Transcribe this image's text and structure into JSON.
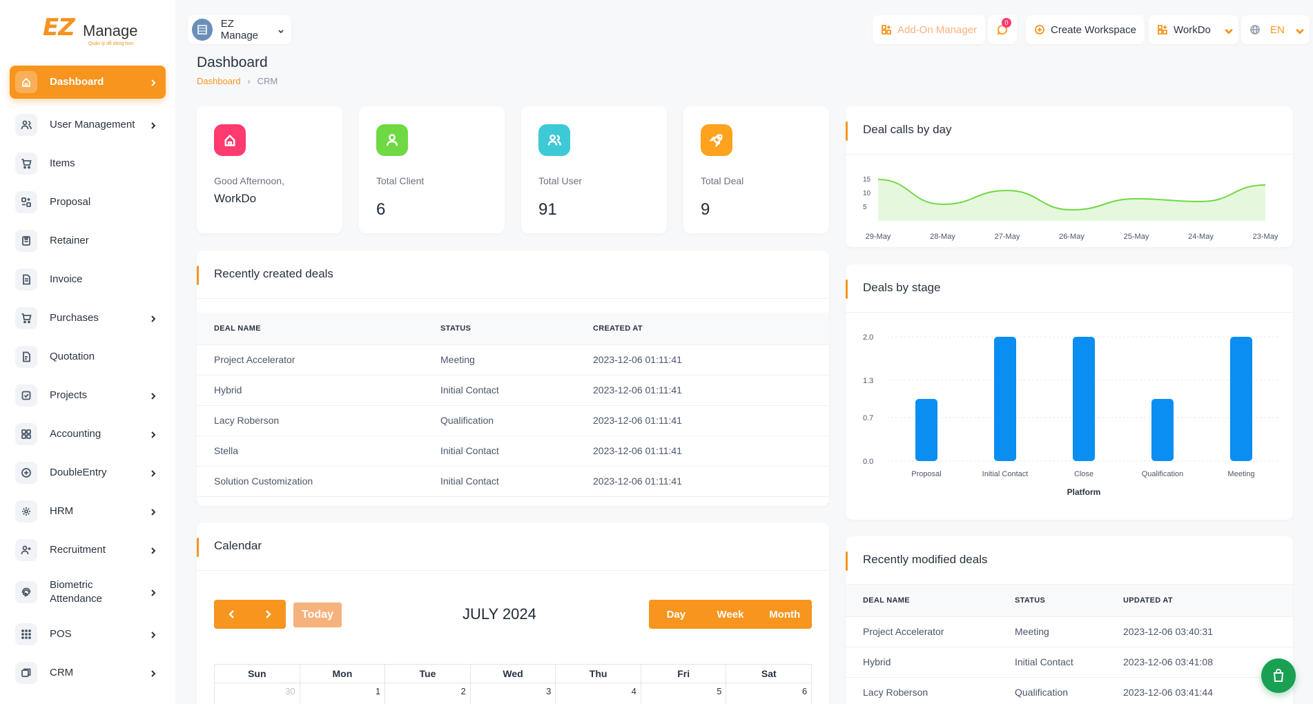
{
  "brand": {
    "logo_text_ez": "EZ",
    "logo_text_manage": "Manage",
    "logo_tagline": "Quản lý dễ dàng hơn"
  },
  "sidebar": {
    "items": [
      {
        "label": "Dashboard",
        "icon": "home-icon",
        "has_children": true,
        "active": true
      },
      {
        "label": "User Management",
        "icon": "users-icon",
        "has_children": true
      },
      {
        "label": "Items",
        "icon": "cart-icon",
        "has_children": false
      },
      {
        "label": "Proposal",
        "icon": "proposal-icon",
        "has_children": false
      },
      {
        "label": "Retainer",
        "icon": "retainer-icon",
        "has_children": false
      },
      {
        "label": "Invoice",
        "icon": "invoice-icon",
        "has_children": false
      },
      {
        "label": "Purchases",
        "icon": "cart-icon",
        "has_children": true
      },
      {
        "label": "Quotation",
        "icon": "quotation-icon",
        "has_children": false
      },
      {
        "label": "Projects",
        "icon": "projects-icon",
        "has_children": true
      },
      {
        "label": "Accounting",
        "icon": "grid-icon",
        "has_children": true
      },
      {
        "label": "DoubleEntry",
        "icon": "scale-icon",
        "has_children": true
      },
      {
        "label": "HRM",
        "icon": "hrm-icon",
        "has_children": true
      },
      {
        "label": "Recruitment",
        "icon": "user-plus-icon",
        "has_children": true
      },
      {
        "label": "Biometric Attendance",
        "icon": "fingerprint-icon",
        "has_children": true
      },
      {
        "label": "POS",
        "icon": "dots-grid-icon",
        "has_children": true
      },
      {
        "label": "CRM",
        "icon": "crm-icon",
        "has_children": true
      }
    ]
  },
  "header": {
    "workspace_name": "EZ Manage",
    "addon_label": "Add-On Manager",
    "notification_count": "0",
    "create_workspace_label": "Create Workspace",
    "workspace_select_label": "WorkDo",
    "language_label": "EN"
  },
  "page": {
    "title": "Dashboard",
    "breadcrumb": [
      "Dashboard",
      "CRM"
    ]
  },
  "stats": [
    {
      "label": "Good Afternoon,",
      "value": "WorkDo",
      "color": "#ff3a6e",
      "icon": "home-icon"
    },
    {
      "label": "Total Client",
      "value": "6",
      "color": "#6fd943",
      "icon": "user-icon"
    },
    {
      "label": "Total User",
      "value": "91",
      "color": "#3ec9d6",
      "icon": "users-icon"
    },
    {
      "label": "Total Deal",
      "value": "9",
      "color": "#ffa21d",
      "icon": "rocket-icon"
    }
  ],
  "recent_deals": {
    "title": "Recently created deals",
    "columns": [
      "DEAL NAME",
      "STATUS",
      "CREATED AT"
    ],
    "rows": [
      [
        "Project Accelerator",
        "Meeting",
        "2023-12-06 01:11:41"
      ],
      [
        "Hybrid",
        "Initial Contact",
        "2023-12-06 01:11:41"
      ],
      [
        "Lacy Roberson",
        "Qualification",
        "2023-12-06 01:11:41"
      ],
      [
        "Stella",
        "Initial Contact",
        "2023-12-06 01:11:41"
      ],
      [
        "Solution Customization",
        "Initial Contact",
        "2023-12-06 01:11:41"
      ]
    ]
  },
  "calendar": {
    "title": "Calendar",
    "month_label": "JULY 2024",
    "today_label": "Today",
    "views": [
      "Day",
      "Week",
      "Month"
    ],
    "weekdays": [
      "Sun",
      "Mon",
      "Tue",
      "Wed",
      "Thu",
      "Fri",
      "Sat"
    ],
    "first_week": [
      "30",
      "1",
      "2",
      "3",
      "4",
      "5",
      "6"
    ]
  },
  "deal_calls": {
    "title": "Deal calls by day",
    "chart_data": {
      "type": "area",
      "x": [
        "29-May",
        "28-May",
        "27-May",
        "26-May",
        "25-May",
        "24-May",
        "23-May"
      ],
      "values": [
        15,
        6,
        11,
        4,
        8,
        7,
        13
      ],
      "yticks": [
        5,
        10,
        15
      ],
      "ylim": [
        0,
        17
      ],
      "color": "#6fd943"
    }
  },
  "deals_by_stage": {
    "title": "Deals by stage",
    "chart_data": {
      "type": "bar",
      "categories": [
        "Proposal",
        "Initial Contact",
        "Close",
        "Qualification",
        "Meeting"
      ],
      "values": [
        1,
        2,
        2,
        1,
        2
      ],
      "xlabel": "Platform",
      "yticks": [
        "0.0",
        "0.7",
        "1.3",
        "2.0"
      ],
      "ylim": [
        0,
        2
      ],
      "color": "#0a8ef2"
    }
  },
  "recent_modified": {
    "title": "Recently modified deals",
    "columns": [
      "DEAL NAME",
      "STATUS",
      "UPDATED AT"
    ],
    "rows": [
      [
        "Project Accelerator",
        "Meeting",
        "2023-12-06 03:40:31"
      ],
      [
        "Hybrid",
        "Initial Contact",
        "2023-12-06 03:41:08"
      ],
      [
        "Lacy Roberson",
        "Qualification",
        "2023-12-06 03:41:44"
      ]
    ]
  }
}
